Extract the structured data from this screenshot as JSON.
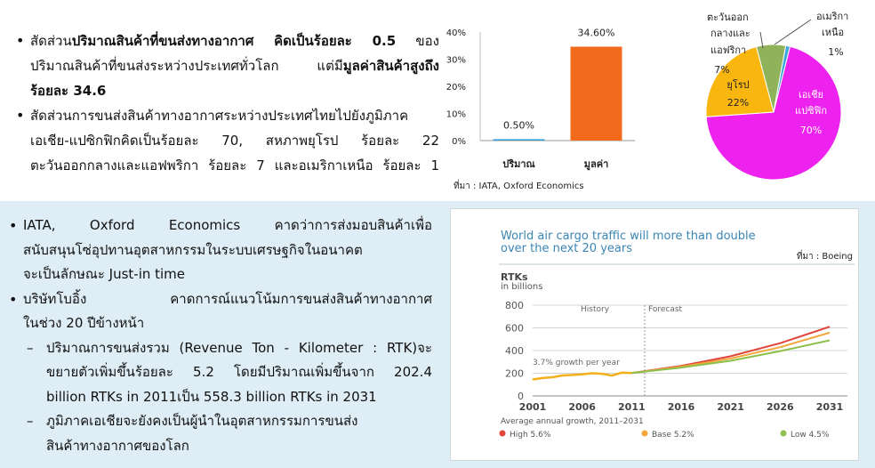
{
  "top_text": {
    "b1": {
      "l1_a": "สัดส่วน",
      "l1_b": "ปริมาณสินค้าที่ขนส่งทางอากาศ คิดเป็นร้อยละ 0.5",
      "l1_c": " ของ",
      "l2_a": "ปริมาณสินค้าที่ขนส่งระหว่างประเทศทั่วโลก แต่มี",
      "l2_b": "มูลค่าสินค้าสูงถึง",
      "l3": "ร้อยละ 34.6"
    },
    "b2": {
      "l1": "สัดส่วนการขนส่งสินค้าทางอากาศระหว่างประเทศไทยไปยังภูมิภาค",
      "l2": "เอเชีย-แปซิกฟิกคิดเป็นร้อยละ 70, สหภาพยุโรป ร้อยละ 22",
      "l3": "ตะวันออกกลางและแอฟพริกา ร้อยละ 7 และอเมริกาเหนือ ร้อยละ 1"
    }
  },
  "bottom_text": {
    "b1": {
      "l1": "IATA, Oxford Economics คาดว่าการส่งมอบสินค้าเพื่อ",
      "l2": "สนับสนุนโซ่อุปทานอุตสาหกรรมในระบบเศรษฐกิจในอนาคต",
      "l3": "จะเป็นลักษณะ Just-in time"
    },
    "b2": {
      "l1": "บริษัทโบอิ้ง คาดการณ์แนวโน้มการขนส่งสินค้าทางอากาศ",
      "l2": "ในช่วง 20 ปีข้างหน้า"
    },
    "s1": {
      "l1": "ปริมาณการขนส่งรวม (Revenue Ton - Kilometer : RTK)จะ",
      "l2": "ขยายตัวเพิ่มขึ้นร้อยละ 5.2 โดยมีปริมาณเพิ่มขึ้นจาก 202.4",
      "l3": "billion RTKs in 2011เป็น 558.3 billion RTKs in 2031"
    },
    "s2": {
      "l1": "ภูมิภาคเอเชียจะยังคงเป็นผู้นำในอุตสาหกรรมการขนส่ง",
      "l2": "สินค้าทางอากาศของโลก"
    }
  },
  "chart_data": [
    {
      "type": "bar",
      "categories": [
        "ปริมาณ",
        "มูลค่า"
      ],
      "values": [
        0.5,
        34.6
      ],
      "value_labels": [
        "0.50%",
        "34.60%"
      ],
      "colors": [
        "#2e9ad6",
        "#f26b1d"
      ],
      "yticks": [
        "0%",
        "10%",
        "20%",
        "30%",
        "40%"
      ],
      "ylim": [
        0,
        40
      ],
      "source": "ที่มา : IATA, Oxford Economics"
    },
    {
      "type": "pie",
      "slices": [
        {
          "label_l1": "เอเชีย",
          "label_l2": "แปซิฟิก",
          "pct": "70%",
          "value": 70,
          "color": "#ee22ee"
        },
        {
          "label_l1": "ยุโรป",
          "label_l2": "",
          "pct": "22%",
          "value": 22,
          "color": "#f8b60f"
        },
        {
          "label_l1": "ตะวันออก",
          "label_l2": "กลางและ",
          "label_l3": "แอฟริกา",
          "pct": "7%",
          "value": 7,
          "color": "#8fb35a"
        },
        {
          "label_l1": "อเมริกา",
          "label_l2": "เหนือ",
          "pct": "1%",
          "value": 1,
          "color": "#3aa7d9"
        }
      ]
    },
    {
      "type": "line",
      "title_l1": "World air cargo traffic will more than double",
      "title_l2": "over the next 20 years",
      "source": "ที่มา : Boeing",
      "ylabel": "RTKs",
      "ylabel_sub": "in billions",
      "yticks": [
        0,
        200,
        400,
        600,
        800
      ],
      "ylim": [
        0,
        800
      ],
      "xticks": [
        "2001",
        "2006",
        "2011",
        "2016",
        "2021",
        "2026",
        "2031"
      ],
      "xlim": [
        2001,
        2031
      ],
      "history_label": "History",
      "forecast_label": "Forecast",
      "growth_note": "3.7% growth per year",
      "legend_title": "Average annual growth, 2011–2031",
      "history": {
        "color": "#f3b01b",
        "x": [
          2001,
          2002,
          2003,
          2004,
          2005,
          2006,
          2007,
          2008,
          2009,
          2010,
          2011
        ],
        "y": [
          145,
          158,
          165,
          180,
          185,
          190,
          200,
          195,
          180,
          205,
          202
        ]
      },
      "series": [
        {
          "name": "High 5.6%",
          "color": "#e0443a",
          "x": [
            2011,
            2016,
            2021,
            2026,
            2031
          ],
          "y": [
            202,
            265,
            350,
            465,
            610
          ]
        },
        {
          "name": "Base 5.2%",
          "color": "#f3a63b",
          "x": [
            2011,
            2016,
            2021,
            2026,
            2031
          ],
          "y": [
            202,
            258,
            330,
            430,
            558
          ]
        },
        {
          "name": "Low 4.5%",
          "color": "#8cc04a",
          "x": [
            2011,
            2016,
            2021,
            2026,
            2031
          ],
          "y": [
            202,
            250,
            310,
            395,
            490
          ]
        }
      ]
    }
  ]
}
